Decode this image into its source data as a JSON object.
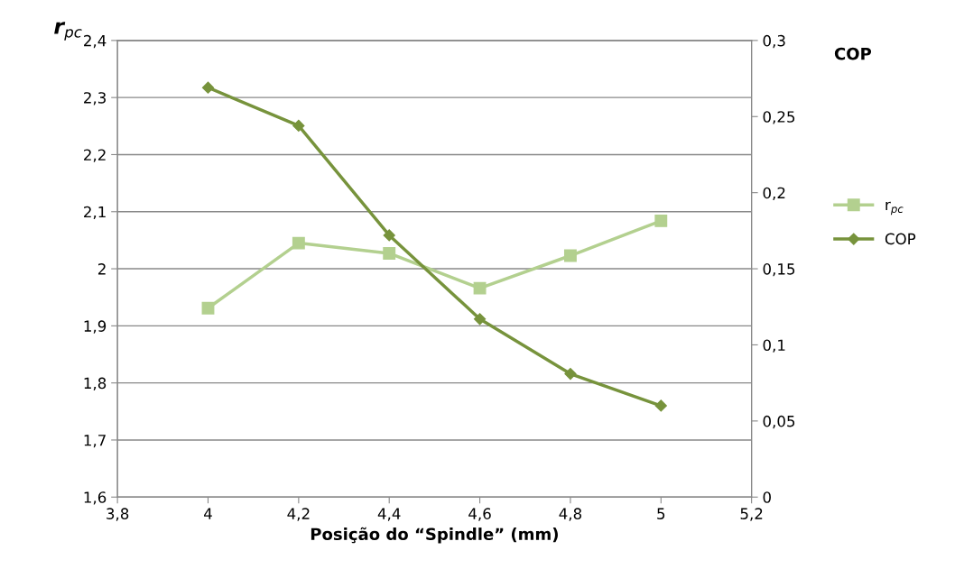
{
  "chart_data": {
    "type": "line",
    "xlabel": "Posição do “Spindle” (mm)",
    "ylabel": "r$_{pc}$",
    "y2label": "COP",
    "x": [
      4,
      4.2,
      4.4,
      4.6,
      4.8,
      5
    ],
    "series": [
      {
        "name": "r$_{pc}$",
        "color": "#b3d08f",
        "values": [
          1.931,
          2.045,
          2.027,
          1.966,
          2.023,
          2.084
        ],
        "marker": "square"
      },
      {
        "name": "COP",
        "color": "#77933c",
        "values": [
          0.269,
          0.244,
          0.172,
          0.117,
          0.081,
          0.06
        ],
        "axis": "y2",
        "marker": "diamond"
      }
    ],
    "xlim": [
      3.8,
      5.2
    ],
    "xticks": [
      {
        "value": 3.8,
        "label": "3,8"
      },
      4,
      {
        "value": 4.2,
        "label": "4,2"
      },
      {
        "value": 4.4,
        "label": "4,4"
      },
      {
        "value": 4.6,
        "label": "4,6"
      },
      {
        "value": 4.8,
        "label": "4,8"
      },
      5,
      {
        "value": 5.2,
        "label": "5,2"
      }
    ],
    "ylim": [
      1.6,
      2.4
    ],
    "yticks": [
      {
        "value": 1.6,
        "label": "1,6"
      },
      {
        "value": 1.7,
        "label": "1,7"
      },
      {
        "value": 1.8,
        "label": "1,8"
      },
      {
        "value": 1.9,
        "label": "1,9"
      },
      2,
      {
        "value": 2.1,
        "label": "2,1"
      },
      {
        "value": 2.2,
        "label": "2,2"
      },
      {
        "value": 2.3,
        "label": "2,3"
      },
      {
        "value": 2.4,
        "label": "2,4"
      }
    ],
    "y2lim": [
      0,
      0.3
    ],
    "y2ticks": [
      0,
      {
        "value": 0.05,
        "label": "0,05"
      },
      {
        "value": 0.1,
        "label": "0,1"
      },
      {
        "value": 0.15,
        "label": "0,15"
      },
      {
        "value": 0.2,
        "label": "0,2"
      },
      {
        "value": 0.25,
        "label": "0,25"
      },
      {
        "value": 0.3,
        "label": "0,3"
      }
    ],
    "grid": "y",
    "legend": "right",
    "line_style": "solid"
  }
}
